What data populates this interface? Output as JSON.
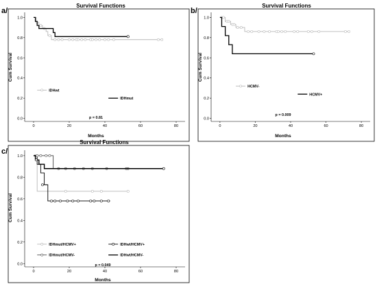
{
  "chart_data": [
    {
      "panel": "a/",
      "type": "line",
      "title": "Survival Functions",
      "xlabel": "Months",
      "ylabel": "Cum Survival",
      "xlim": [
        -5,
        85
      ],
      "ylim": [
        -0.03,
        1.05
      ],
      "x_ticks": [
        0,
        20,
        40,
        60,
        80
      ],
      "y_ticks": [
        0.0,
        0.2,
        0.4,
        0.6,
        0.8,
        1.0
      ],
      "y_tick_labels": [
        "0.0",
        "0.2",
        "0.4",
        "0.6",
        "0.8",
        "1.0"
      ],
      "p_value": "p = 0.81",
      "grid": false,
      "series": [
        {
          "name": "IDHwt",
          "color": "#b8b8b8",
          "width": 0.9,
          "steps": [
            [
              0,
              1.0
            ],
            [
              1.5,
              0.95
            ],
            [
              3,
              0.92
            ],
            [
              5,
              0.89
            ],
            [
              7,
              0.86
            ],
            [
              8,
              0.82
            ],
            [
              10,
              0.78
            ],
            [
              72,
              0.78
            ]
          ],
          "censors": [
            [
              2,
              0.95
            ],
            [
              4,
              0.92
            ],
            [
              6,
              0.89
            ],
            [
              9,
              0.82
            ],
            [
              12,
              0.78
            ],
            [
              14,
              0.78
            ],
            [
              16,
              0.78
            ],
            [
              20,
              0.78
            ],
            [
              22,
              0.78
            ],
            [
              24,
              0.78
            ],
            [
              25,
              0.78
            ],
            [
              27,
              0.78
            ],
            [
              29,
              0.78
            ],
            [
              32,
              0.78
            ],
            [
              33,
              0.78
            ],
            [
              35,
              0.78
            ],
            [
              37,
              0.78
            ],
            [
              40,
              0.78
            ],
            [
              42,
              0.78
            ],
            [
              45,
              0.78
            ],
            [
              70,
              0.78
            ],
            [
              72,
              0.78
            ]
          ],
          "legend_anchor": [
            2,
            0.28
          ],
          "legend_style": "marker"
        },
        {
          "name": "IDHmut",
          "color": "#000000",
          "width": 1.3,
          "steps": [
            [
              0,
              1.0
            ],
            [
              1,
              0.96
            ],
            [
              2,
              0.92
            ],
            [
              3,
              0.89
            ],
            [
              11,
              0.85
            ],
            [
              12,
              0.81
            ],
            [
              53,
              0.81
            ]
          ],
          "censors": [
            [
              53,
              0.81
            ]
          ],
          "legend_anchor": [
            42,
            0.2
          ],
          "legend_style": "line"
        }
      ]
    },
    {
      "panel": "b/",
      "type": "line",
      "title": "Survival Functions",
      "xlabel": "Months",
      "ylabel": "Cum Survival",
      "xlim": [
        -5,
        85
      ],
      "ylim": [
        -0.03,
        1.05
      ],
      "x_ticks": [
        0,
        20,
        40,
        60,
        80
      ],
      "y_ticks": [
        0.0,
        0.2,
        0.4,
        0.6,
        0.8,
        1.0
      ],
      "y_tick_labels": [
        "0.0",
        "0.2",
        "0.4",
        "0.6",
        "0.8",
        "1.0"
      ],
      "p_value": "p = 0.009",
      "grid": false,
      "series": [
        {
          "name": "HCMV-",
          "color": "#b8b8b8",
          "width": 0.9,
          "steps": [
            [
              0,
              1.0
            ],
            [
              3,
              0.96
            ],
            [
              6,
              0.93
            ],
            [
              9,
              0.9
            ],
            [
              14,
              0.86
            ],
            [
              73,
              0.86
            ]
          ],
          "censors": [
            [
              1,
              1.0
            ],
            [
              2,
              1.0
            ],
            [
              4,
              0.96
            ],
            [
              5,
              0.96
            ],
            [
              7,
              0.93
            ],
            [
              8,
              0.93
            ],
            [
              10,
              0.9
            ],
            [
              12,
              0.9
            ],
            [
              16,
              0.86
            ],
            [
              18,
              0.86
            ],
            [
              22,
              0.86
            ],
            [
              25,
              0.86
            ],
            [
              28,
              0.86
            ],
            [
              32,
              0.86
            ],
            [
              33,
              0.86
            ],
            [
              35,
              0.86
            ],
            [
              37,
              0.86
            ],
            [
              42,
              0.86
            ],
            [
              44,
              0.86
            ],
            [
              50,
              0.86
            ],
            [
              52,
              0.86
            ],
            [
              56,
              0.86
            ],
            [
              71,
              0.86
            ],
            [
              73,
              0.86
            ]
          ],
          "legend_anchor": [
            9,
            0.32
          ],
          "legend_style": "marker"
        },
        {
          "name": "HCMV+",
          "color": "#000000",
          "width": 1.3,
          "steps": [
            [
              0,
              1.0
            ],
            [
              1,
              0.91
            ],
            [
              3,
              0.82
            ],
            [
              5,
              0.73
            ],
            [
              7,
              0.64
            ],
            [
              53,
              0.64
            ]
          ],
          "censors": [
            [
              53,
              0.64
            ]
          ],
          "legend_anchor": [
            44,
            0.24
          ],
          "legend_style": "line"
        }
      ]
    },
    {
      "panel": "c/",
      "type": "line",
      "title": "Survival Functions",
      "xlabel": "Months",
      "ylabel": "Cum Survival",
      "xlim": [
        -5,
        85
      ],
      "ylim": [
        -0.03,
        1.05
      ],
      "x_ticks": [
        0,
        20,
        40,
        60,
        80
      ],
      "y_ticks": [
        0.0,
        0.2,
        0.4,
        0.6,
        0.8,
        1.0
      ],
      "y_tick_labels": [
        "0.0",
        "0.2",
        "0.4",
        "0.6",
        "0.8",
        "1.0"
      ],
      "p_value": "p = 0.049",
      "grid": false,
      "series": [
        {
          "name": "IDHmut/HCMV+",
          "color": "#b8b8b8",
          "width": 0.9,
          "steps": [
            [
              0,
              1.0
            ],
            [
              2,
              0.67
            ],
            [
              53,
              0.67
            ]
          ],
          "censors": [
            [
              1,
              1.0
            ],
            [
              18,
              0.67
            ],
            [
              33,
              0.67
            ],
            [
              38,
              0.67
            ],
            [
              53,
              0.67
            ]
          ],
          "legend_anchor": [
            2,
            0.18
          ],
          "legend_style": "marker"
        },
        {
          "name": "IDHwt/HCMV+",
          "color": "#000000",
          "width": 0.9,
          "steps": [
            [
              0,
              1.0
            ],
            [
              2,
              0.92
            ],
            [
              4,
              0.84
            ],
            [
              6,
              0.73
            ],
            [
              8,
              0.58
            ],
            [
              43,
              0.58
            ]
          ],
          "censors": [
            [
              5,
              0.73
            ],
            [
              10,
              0.58
            ],
            [
              12,
              0.58
            ],
            [
              15,
              0.58
            ],
            [
              19,
              0.58
            ],
            [
              22,
              0.58
            ],
            [
              25,
              0.58
            ],
            [
              32,
              0.58
            ],
            [
              34,
              0.58
            ],
            [
              38,
              0.58
            ],
            [
              42,
              0.58
            ]
          ],
          "legend_anchor": [
            42,
            0.18
          ],
          "legend_style": "marker"
        },
        {
          "name": "IDHmut/HCMV-",
          "color": "#555555",
          "width": 1.0,
          "steps": [
            [
              0,
              1.0
            ],
            [
              11,
              0.88
            ],
            [
              73,
              0.88
            ]
          ],
          "censors": [
            [
              2,
              1.0
            ],
            [
              4,
              1.0
            ],
            [
              7,
              1.0
            ],
            [
              9,
              1.0
            ],
            [
              14,
              0.88
            ],
            [
              18,
              0.88
            ],
            [
              23,
              0.88
            ],
            [
              28,
              0.88
            ],
            [
              33,
              0.88
            ],
            [
              41,
              0.88
            ],
            [
              52,
              0.88
            ],
            [
              53,
              0.88
            ]
          ],
          "legend_anchor": [
            2,
            0.08
          ],
          "legend_style": "marker"
        },
        {
          "name": "IDHwt/HCMV-",
          "color": "#000000",
          "width": 1.4,
          "steps": [
            [
              0,
              1.0
            ],
            [
              1,
              0.96
            ],
            [
              3,
              0.92
            ],
            [
              6,
              0.88
            ],
            [
              73,
              0.88
            ]
          ],
          "censors": [
            [
              1.5,
              0.96
            ],
            [
              73,
              0.88
            ]
          ],
          "legend_anchor": [
            42,
            0.08
          ],
          "legend_style": "line"
        }
      ]
    }
  ]
}
